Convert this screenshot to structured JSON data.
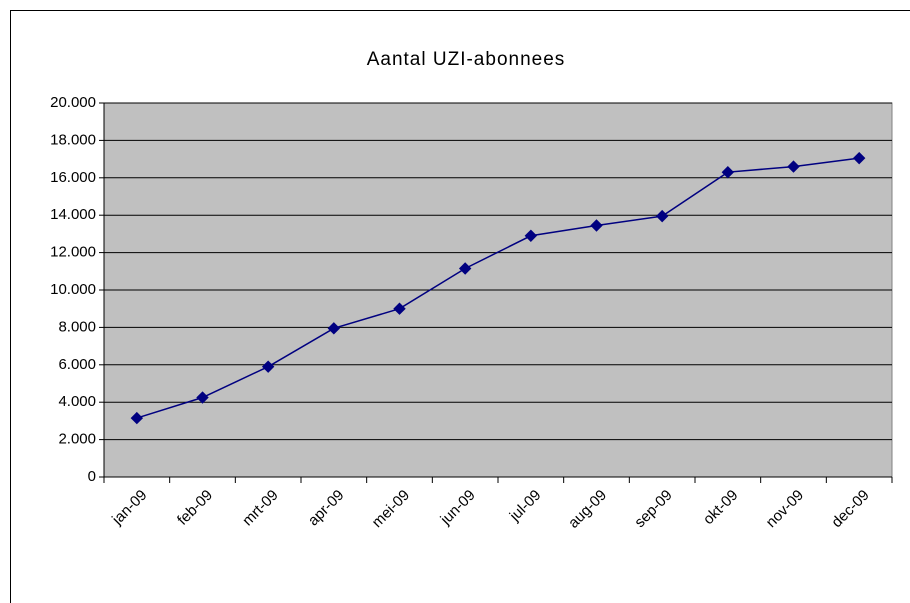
{
  "chart_data": {
    "type": "line",
    "title": "Aantal UZI-abonnees",
    "categories": [
      "jan-09",
      "feb-09",
      "mrt-09",
      "apr-09",
      "mei-09",
      "jun-09",
      "jul-09",
      "aug-09",
      "sep-09",
      "okt-09",
      "nov-09",
      "dec-09"
    ],
    "series": [
      {
        "name": "Aantal UZI-abonnees",
        "color": "#000080",
        "values": [
          3150,
          4250,
          5900,
          7950,
          9000,
          11150,
          12900,
          13450,
          13950,
          16300,
          16600,
          17050
        ]
      }
    ],
    "ylim": [
      0,
      20000
    ],
    "yticks": [
      0,
      {
        "value": 2000,
        "label": "2.000"
      },
      {
        "value": 4000,
        "label": "4.000"
      },
      {
        "value": 6000,
        "label": "6.000"
      },
      {
        "value": 8000,
        "label": "8.000"
      },
      {
        "value": 10000,
        "label": "10.000"
      },
      {
        "value": 12000,
        "label": "12.000"
      },
      {
        "value": 14000,
        "label": "14.000"
      },
      {
        "value": 16000,
        "label": "16.000"
      },
      {
        "value": 18000,
        "label": "18.000"
      },
      {
        "value": 20000,
        "label": "20.000"
      }
    ],
    "grid": true,
    "plot_background": "#c0c0c0"
  }
}
